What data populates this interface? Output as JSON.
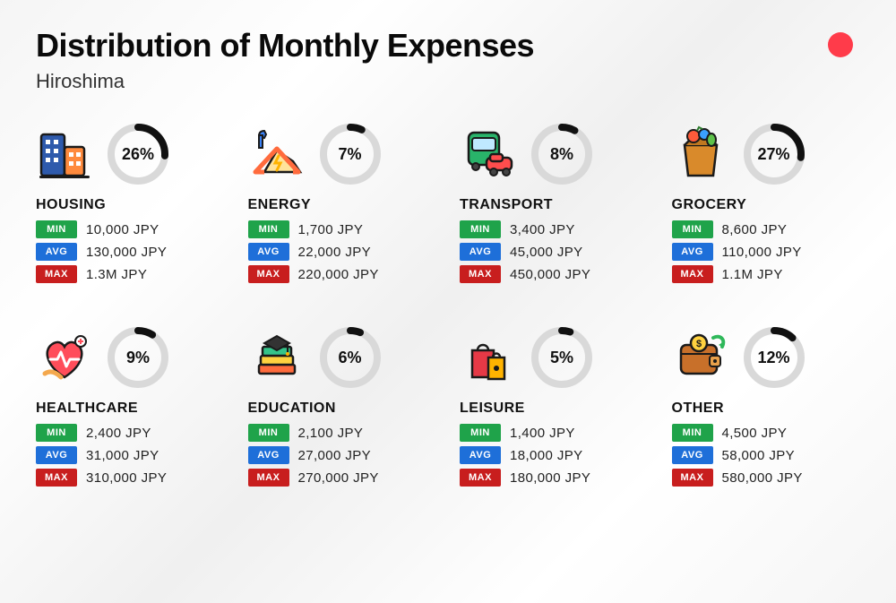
{
  "header": {
    "title": "Distribution of Monthly Expenses",
    "subtitle": "Hiroshima"
  },
  "labels": {
    "min": "MIN",
    "avg": "AVG",
    "max": "MAX"
  },
  "colors": {
    "ring_track": "#d9d9d9",
    "ring_progress": "#111111",
    "min_bg": "#1fa34a",
    "avg_bg": "#1e6fd9",
    "max_bg": "#c81e1e",
    "accent_dot": "#ff3b4a"
  },
  "ring": {
    "radius": 30,
    "stroke": 8
  },
  "categories": [
    {
      "id": "housing",
      "name": "HOUSING",
      "percent": 26,
      "min": "10,000 JPY",
      "avg": "130,000 JPY",
      "max": "1.3M JPY"
    },
    {
      "id": "energy",
      "name": "ENERGY",
      "percent": 7,
      "min": "1,700 JPY",
      "avg": "22,000 JPY",
      "max": "220,000 JPY"
    },
    {
      "id": "transport",
      "name": "TRANSPORT",
      "percent": 8,
      "min": "3,400 JPY",
      "avg": "45,000 JPY",
      "max": "450,000 JPY"
    },
    {
      "id": "grocery",
      "name": "GROCERY",
      "percent": 27,
      "min": "8,600 JPY",
      "avg": "110,000 JPY",
      "max": "1.1M JPY"
    },
    {
      "id": "healthcare",
      "name": "HEALTHCARE",
      "percent": 9,
      "min": "2,400 JPY",
      "avg": "31,000 JPY",
      "max": "310,000 JPY"
    },
    {
      "id": "education",
      "name": "EDUCATION",
      "percent": 6,
      "min": "2,100 JPY",
      "avg": "27,000 JPY",
      "max": "270,000 JPY"
    },
    {
      "id": "leisure",
      "name": "LEISURE",
      "percent": 5,
      "min": "1,400 JPY",
      "avg": "18,000 JPY",
      "max": "180,000 JPY"
    },
    {
      "id": "other",
      "name": "OTHER",
      "percent": 12,
      "min": "4,500 JPY",
      "avg": "58,000 JPY",
      "max": "580,000 JPY"
    }
  ]
}
